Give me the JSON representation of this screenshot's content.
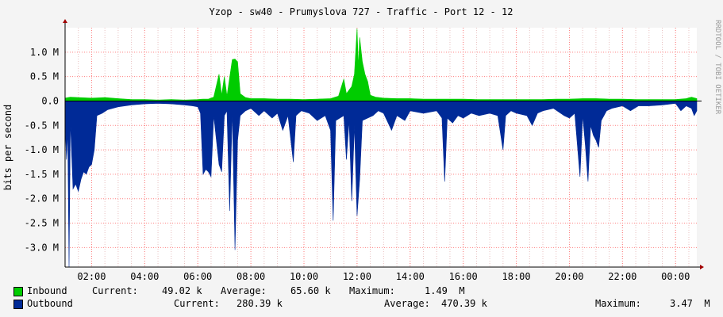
{
  "chart_data": {
    "type": "area",
    "title": "Yzop - sw40 - Prumyslova 727 - Traffic - Port 12 - 12",
    "ylabel": "bits per second",
    "watermark": "RRDTOOL / TOBI OETIKER",
    "ylim": [
      -3.4,
      1.5
    ],
    "y_ticks": [
      {
        "v": 1.0,
        "label": "1.0 M"
      },
      {
        "v": 0.5,
        "label": "0.5 M"
      },
      {
        "v": 0.0,
        "label": "0.0"
      },
      {
        "v": -0.5,
        "label": "-0.5 M"
      },
      {
        "v": -1.0,
        "label": "-1.0 M"
      },
      {
        "v": -1.5,
        "label": "-1.5 M"
      },
      {
        "v": -2.0,
        "label": "-2.0 M"
      },
      {
        "v": -2.5,
        "label": "-2.5 M"
      },
      {
        "v": -3.0,
        "label": "-3.0 M"
      }
    ],
    "x_labels": [
      "02:00",
      "04:00",
      "06:00",
      "08:00",
      "10:00",
      "12:00",
      "14:00",
      "16:00",
      "18:00",
      "20:00",
      "22:00",
      "00:00"
    ],
    "x_label_hours": [
      2,
      4,
      6,
      8,
      10,
      12,
      14,
      16,
      18,
      20,
      22,
      24
    ],
    "xlim_hours": [
      1.0,
      24.8
    ],
    "colors": {
      "inbound": "#00cc00",
      "outbound": "#002a97",
      "grid": "#ff8080",
      "axis": "#000000"
    },
    "series": [
      {
        "name": "Inbound",
        "points": [
          [
            1.0,
            0.06
          ],
          [
            1.2,
            0.08
          ],
          [
            1.5,
            0.07
          ],
          [
            2.0,
            0.06
          ],
          [
            2.5,
            0.07
          ],
          [
            3.0,
            0.05
          ],
          [
            3.5,
            0.03
          ],
          [
            4.0,
            0.03
          ],
          [
            4.5,
            0.02
          ],
          [
            5.0,
            0.03
          ],
          [
            5.5,
            0.02
          ],
          [
            6.0,
            0.03
          ],
          [
            6.2,
            0.04
          ],
          [
            6.4,
            0.04
          ],
          [
            6.6,
            0.08
          ],
          [
            6.8,
            0.55
          ],
          [
            6.9,
            0.12
          ],
          [
            7.0,
            0.5
          ],
          [
            7.1,
            0.1
          ],
          [
            7.3,
            0.85
          ],
          [
            7.4,
            0.86
          ],
          [
            7.5,
            0.8
          ],
          [
            7.6,
            0.15
          ],
          [
            7.8,
            0.07
          ],
          [
            8.0,
            0.05
          ],
          [
            8.5,
            0.05
          ],
          [
            9.0,
            0.04
          ],
          [
            9.5,
            0.04
          ],
          [
            10.0,
            0.03
          ],
          [
            10.5,
            0.04
          ],
          [
            11.0,
            0.05
          ],
          [
            11.3,
            0.1
          ],
          [
            11.5,
            0.45
          ],
          [
            11.6,
            0.15
          ],
          [
            11.8,
            0.3
          ],
          [
            11.9,
            0.55
          ],
          [
            12.0,
            1.48
          ],
          [
            12.05,
            0.7
          ],
          [
            12.1,
            1.3
          ],
          [
            12.2,
            0.8
          ],
          [
            12.3,
            0.55
          ],
          [
            12.4,
            0.4
          ],
          [
            12.5,
            0.12
          ],
          [
            12.7,
            0.08
          ],
          [
            13.0,
            0.06
          ],
          [
            13.5,
            0.05
          ],
          [
            14.0,
            0.05
          ],
          [
            14.5,
            0.04
          ],
          [
            15.0,
            0.04
          ],
          [
            15.5,
            0.04
          ],
          [
            16.0,
            0.04
          ],
          [
            16.5,
            0.03
          ],
          [
            17.0,
            0.03
          ],
          [
            17.5,
            0.03
          ],
          [
            18.0,
            0.03
          ],
          [
            18.5,
            0.03
          ],
          [
            19.0,
            0.03
          ],
          [
            19.5,
            0.04
          ],
          [
            20.0,
            0.04
          ],
          [
            20.5,
            0.05
          ],
          [
            21.0,
            0.05
          ],
          [
            21.5,
            0.04
          ],
          [
            22.0,
            0.04
          ],
          [
            22.5,
            0.03
          ],
          [
            23.0,
            0.03
          ],
          [
            23.5,
            0.03
          ],
          [
            24.0,
            0.03
          ],
          [
            24.4,
            0.05
          ],
          [
            24.6,
            0.08
          ],
          [
            24.8,
            0.05
          ]
        ]
      },
      {
        "name": "Outbound",
        "points": [
          [
            1.0,
            -0.4
          ],
          [
            1.05,
            -1.2
          ],
          [
            1.1,
            -0.6
          ],
          [
            1.15,
            -3.4
          ],
          [
            1.2,
            -0.4
          ],
          [
            1.3,
            -1.8
          ],
          [
            1.4,
            -1.7
          ],
          [
            1.5,
            -1.85
          ],
          [
            1.6,
            -1.6
          ],
          [
            1.7,
            -1.45
          ],
          [
            1.8,
            -1.5
          ],
          [
            1.9,
            -1.35
          ],
          [
            2.0,
            -1.3
          ],
          [
            2.1,
            -1.0
          ],
          [
            2.2,
            -0.3
          ],
          [
            2.4,
            -0.25
          ],
          [
            2.6,
            -0.18
          ],
          [
            3.0,
            -0.12
          ],
          [
            3.5,
            -0.08
          ],
          [
            4.0,
            -0.06
          ],
          [
            4.5,
            -0.05
          ],
          [
            5.0,
            -0.06
          ],
          [
            5.5,
            -0.08
          ],
          [
            5.8,
            -0.1
          ],
          [
            6.0,
            -0.12
          ],
          [
            6.1,
            -0.25
          ],
          [
            6.2,
            -1.5
          ],
          [
            6.3,
            -1.4
          ],
          [
            6.4,
            -1.45
          ],
          [
            6.5,
            -1.55
          ],
          [
            6.6,
            -0.3
          ],
          [
            6.8,
            -1.3
          ],
          [
            6.9,
            -1.45
          ],
          [
            7.0,
            -0.3
          ],
          [
            7.1,
            -0.2
          ],
          [
            7.2,
            -2.25
          ],
          [
            7.3,
            -0.2
          ],
          [
            7.4,
            -3.05
          ],
          [
            7.5,
            -0.8
          ],
          [
            7.6,
            -0.3
          ],
          [
            7.8,
            -0.2
          ],
          [
            8.0,
            -0.15
          ],
          [
            8.3,
            -0.3
          ],
          [
            8.5,
            -0.2
          ],
          [
            8.8,
            -0.35
          ],
          [
            9.0,
            -0.25
          ],
          [
            9.2,
            -0.6
          ],
          [
            9.4,
            -0.3
          ],
          [
            9.6,
            -1.25
          ],
          [
            9.7,
            -0.3
          ],
          [
            9.9,
            -0.2
          ],
          [
            10.2,
            -0.25
          ],
          [
            10.5,
            -0.4
          ],
          [
            10.8,
            -0.3
          ],
          [
            11.0,
            -0.6
          ],
          [
            11.1,
            -2.45
          ],
          [
            11.2,
            -0.4
          ],
          [
            11.5,
            -0.3
          ],
          [
            11.6,
            -1.2
          ],
          [
            11.7,
            -0.4
          ],
          [
            11.8,
            -2.05
          ],
          [
            11.9,
            -0.5
          ],
          [
            12.0,
            -2.35
          ],
          [
            12.1,
            -1.6
          ],
          [
            12.2,
            -0.4
          ],
          [
            12.4,
            -0.35
          ],
          [
            12.6,
            -0.3
          ],
          [
            12.8,
            -0.2
          ],
          [
            13.0,
            -0.25
          ],
          [
            13.3,
            -0.6
          ],
          [
            13.5,
            -0.3
          ],
          [
            13.8,
            -0.4
          ],
          [
            14.0,
            -0.2
          ],
          [
            14.5,
            -0.25
          ],
          [
            15.0,
            -0.2
          ],
          [
            15.2,
            -0.35
          ],
          [
            15.3,
            -1.65
          ],
          [
            15.4,
            -0.35
          ],
          [
            15.6,
            -0.45
          ],
          [
            15.8,
            -0.3
          ],
          [
            16.0,
            -0.35
          ],
          [
            16.3,
            -0.25
          ],
          [
            16.6,
            -0.3
          ],
          [
            17.0,
            -0.25
          ],
          [
            17.3,
            -0.3
          ],
          [
            17.5,
            -1.0
          ],
          [
            17.6,
            -0.3
          ],
          [
            17.8,
            -0.2
          ],
          [
            18.0,
            -0.25
          ],
          [
            18.4,
            -0.3
          ],
          [
            18.6,
            -0.5
          ],
          [
            18.8,
            -0.25
          ],
          [
            19.0,
            -0.2
          ],
          [
            19.4,
            -0.15
          ],
          [
            19.8,
            -0.3
          ],
          [
            20.0,
            -0.35
          ],
          [
            20.2,
            -0.25
          ],
          [
            20.4,
            -1.55
          ],
          [
            20.5,
            -0.3
          ],
          [
            20.6,
            -0.9
          ],
          [
            20.7,
            -1.65
          ],
          [
            20.8,
            -0.5
          ],
          [
            20.9,
            -0.7
          ],
          [
            21.0,
            -0.8
          ],
          [
            21.1,
            -0.95
          ],
          [
            21.2,
            -0.4
          ],
          [
            21.4,
            -0.2
          ],
          [
            21.6,
            -0.15
          ],
          [
            22.0,
            -0.1
          ],
          [
            22.3,
            -0.2
          ],
          [
            22.6,
            -0.1
          ],
          [
            23.0,
            -0.1
          ],
          [
            23.5,
            -0.08
          ],
          [
            24.0,
            -0.05
          ],
          [
            24.2,
            -0.2
          ],
          [
            24.4,
            -0.1
          ],
          [
            24.6,
            -0.15
          ],
          [
            24.7,
            -0.3
          ],
          [
            24.8,
            -0.2
          ]
        ]
      }
    ]
  },
  "legend": {
    "inbound": {
      "name": "Inbound",
      "current_label": "Current:",
      "current": "49.02 k",
      "average_label": "Average:",
      "average": "65.60 k",
      "maximum_label": "Maximum:",
      "maximum": "1.49  M"
    },
    "outbound": {
      "name": "Outbound",
      "current_label": "Current:",
      "current": "280.39 k",
      "average_label": "Average:",
      "average": "470.39 k",
      "maximum_label": "Maximum:",
      "maximum": "3.47  M"
    }
  }
}
